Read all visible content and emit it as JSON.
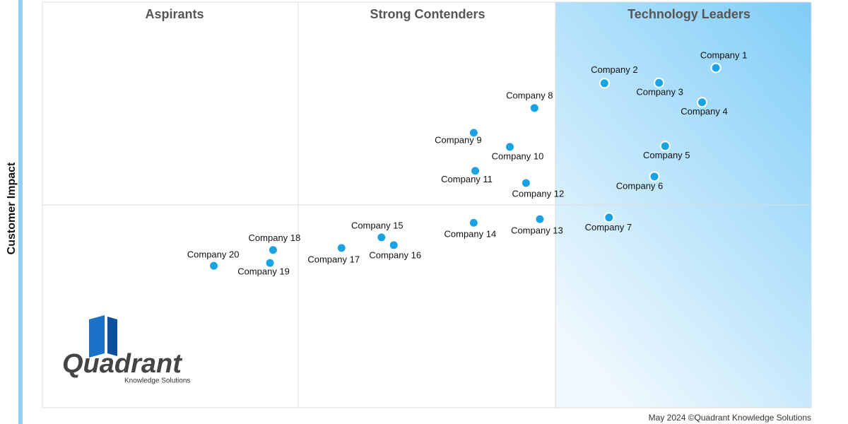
{
  "chart_data": {
    "type": "scatter",
    "ylabel": "Customer Impact",
    "quadrant_titles": [
      "Aspirants",
      "Strong Contenders",
      "Technology Leaders"
    ],
    "labels": [
      "Company 1",
      "Company 2",
      "Company 3",
      "Company 4",
      "Company 5",
      "Company 6",
      "Company 7",
      "Company 8",
      "Company 9",
      "Company 10",
      "Company 11",
      "Company 12",
      "Company 13",
      "Company 14",
      "Company 15",
      "Company 16",
      "Company 17",
      "Company 18",
      "Company 19",
      "Company 20"
    ],
    "x": [
      87.6,
      73.1,
      80.2,
      85.8,
      81.0,
      79.6,
      73.7,
      64.0,
      56.1,
      60.8,
      56.3,
      62.9,
      64.7,
      56.1,
      44.1,
      45.7,
      38.9,
      30.0,
      29.6,
      22.3
    ],
    "values": [
      83.8,
      80.0,
      80.1,
      75.3,
      64.5,
      57.0,
      46.9,
      73.9,
      67.8,
      64.3,
      58.4,
      55.4,
      46.5,
      45.6,
      42.0,
      40.1,
      39.4,
      38.9,
      35.7,
      35.0
    ],
    "color": "#1aa3e3",
    "xlim": [
      0,
      100
    ],
    "ylim": [
      0,
      100
    ]
  },
  "logo": {
    "name": "Quadrant",
    "tagline": "Knowledge Solutions"
  },
  "footer": "May 2024 ©Quadrant Knowledge Solutions"
}
